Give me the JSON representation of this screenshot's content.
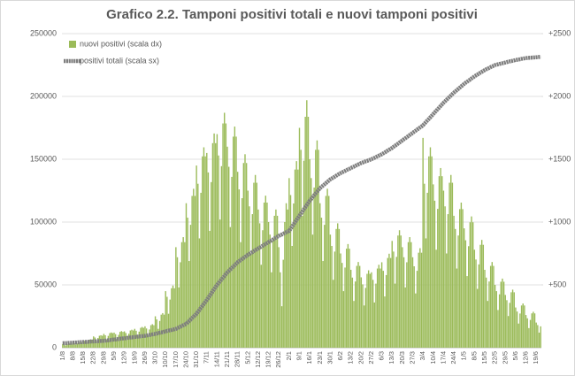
{
  "chart_data": {
    "type": "bar",
    "title": "Grafico 2.2. Tamponi positivi totali e nuovi tamponi positivi",
    "categories": [
      "1/8",
      null,
      null,
      null,
      null,
      null,
      null,
      "8/8",
      null,
      null,
      null,
      null,
      null,
      null,
      "15/8",
      null,
      null,
      null,
      null,
      null,
      null,
      "22/8",
      null,
      null,
      null,
      null,
      null,
      null,
      "29/8",
      null,
      null,
      null,
      null,
      null,
      null,
      "5/9",
      null,
      null,
      null,
      null,
      null,
      null,
      "12/9",
      null,
      null,
      null,
      null,
      null,
      null,
      "19/9",
      null,
      null,
      null,
      null,
      null,
      null,
      "26/9",
      null,
      null,
      null,
      null,
      null,
      null,
      "3/10",
      null,
      null,
      null,
      null,
      null,
      null,
      "10/10",
      null,
      null,
      null,
      null,
      null,
      null,
      "17/10",
      null,
      null,
      null,
      null,
      null,
      null,
      "24/10",
      null,
      null,
      null,
      null,
      null,
      null,
      "31/10",
      null,
      null,
      null,
      null,
      null,
      null,
      "7/11",
      null,
      null,
      null,
      null,
      null,
      null,
      "14/11",
      null,
      null,
      null,
      null,
      null,
      null,
      "21/11",
      null,
      null,
      null,
      null,
      null,
      null,
      "28/11",
      null,
      null,
      null,
      null,
      null,
      null,
      "5/12",
      null,
      null,
      null,
      null,
      null,
      null,
      "12/12",
      null,
      null,
      null,
      null,
      null,
      null,
      "19/12",
      null,
      null,
      null,
      null,
      null,
      null,
      "26/12",
      null,
      null,
      null,
      null,
      null,
      null,
      "2/1",
      null,
      null,
      null,
      null,
      null,
      null,
      "9/1",
      null,
      null,
      null,
      null,
      null,
      null,
      "16/1",
      null,
      null,
      null,
      null,
      null,
      null,
      "23/1",
      null,
      null,
      null,
      null,
      null,
      null,
      "30/1",
      null,
      null,
      null,
      null,
      null,
      null,
      "6/2",
      null,
      null,
      null,
      null,
      null,
      null,
      "13/2",
      null,
      null,
      null,
      null,
      null,
      null,
      "20/2",
      null,
      null,
      null,
      null,
      null,
      null,
      "27/2",
      null,
      null,
      null,
      null,
      null,
      null,
      "6/3",
      null,
      null,
      null,
      null,
      null,
      null,
      "13/3",
      null,
      null,
      null,
      null,
      null,
      null,
      "20/3",
      null,
      null,
      null,
      null,
      null,
      null,
      "27/3",
      null,
      null,
      null,
      null,
      null,
      null,
      "3/4",
      null,
      null,
      null,
      null,
      null,
      null,
      "10/4",
      null,
      null,
      null,
      null,
      null,
      null,
      "17/4",
      null,
      null,
      null,
      null,
      null,
      null,
      "24/4",
      null,
      null,
      null,
      null,
      null,
      null,
      "1/5",
      null,
      null,
      null,
      null,
      null,
      null,
      "8/5",
      null,
      null,
      null,
      null,
      null,
      null,
      "15/5",
      null,
      null,
      null,
      null,
      null,
      null,
      "22/5",
      null,
      null,
      null,
      null,
      null,
      null,
      "29/5",
      null,
      null,
      null,
      null,
      null,
      null,
      "5/6",
      null,
      null,
      null,
      null,
      null,
      null,
      "12/6",
      null,
      null,
      null,
      null,
      null,
      null,
      "19/6",
      null,
      null,
      null
    ],
    "series": [
      {
        "name": "nuovi positivi (scala dx)",
        "type": "bar",
        "axis": "y2",
        "color": "#9bbb59",
        "values": [
          30,
          27,
          18,
          26,
          32,
          33,
          32,
          40,
          36,
          24,
          34,
          42,
          44,
          42,
          60,
          54,
          36,
          51,
          63,
          66,
          63,
          90,
          81,
          54,
          77,
          95,
          99,
          95,
          110,
          99,
          66,
          94,
          116,
          121,
          116,
          120,
          108,
          72,
          102,
          126,
          132,
          126,
          130,
          117,
          78,
          111,
          137,
          143,
          137,
          150,
          135,
          90,
          128,
          158,
          165,
          158,
          170,
          153,
          102,
          145,
          179,
          187,
          179,
          250,
          225,
          150,
          213,
          263,
          275,
          263,
          450,
          405,
          270,
          383,
          473,
          495,
          473,
          800,
          720,
          480,
          680,
          840,
          880,
          840,
          1150,
          1035,
          690,
          978,
          1208,
          1265,
          1208,
          1450,
          1305,
          870,
          1233,
          1523,
          1595,
          1523,
          1550,
          1395,
          930,
          1318,
          1628,
          1705,
          1628,
          1700,
          1530,
          1020,
          1445,
          1785,
          1870,
          1785,
          1600,
          1440,
          960,
          1360,
          1680,
          1760,
          1680,
          1400,
          1260,
          840,
          1190,
          1470,
          1540,
          1470,
          1250,
          1125,
          750,
          1063,
          1313,
          1375,
          1313,
          1100,
          990,
          660,
          935,
          1155,
          1210,
          1155,
          1000,
          900,
          600,
          850,
          1050,
          1100,
          1050,
          800,
          600,
          330,
          700,
          1000,
          1150,
          1100,
          1350,
          1215,
          810,
          1148,
          1418,
          1485,
          1418,
          1750,
          1575,
          1050,
          1488,
          1838,
          1970,
          1838,
          1500,
          1350,
          900,
          1275,
          1575,
          1650,
          1575,
          1150,
          1035,
          690,
          978,
          1208,
          1265,
          1208,
          900,
          810,
          540,
          765,
          945,
          990,
          945,
          750,
          675,
          450,
          638,
          788,
          825,
          788,
          620,
          558,
          372,
          527,
          651,
          682,
          651,
          560,
          504,
          336,
          476,
          588,
          616,
          588,
          600,
          540,
          360,
          510,
          630,
          660,
          630,
          680,
          612,
          408,
          578,
          714,
          748,
          714,
          850,
          765,
          510,
          723,
          893,
          935,
          893,
          800,
          720,
          480,
          680,
          840,
          880,
          840,
          720,
          648,
          432,
          612,
          756,
          792,
          756,
          1670,
          1305,
          870,
          1233,
          1523,
          1595,
          1523,
          1300,
          1170,
          780,
          1105,
          1365,
          1430,
          1365,
          1250,
          1125,
          750,
          1063,
          1313,
          1375,
          1313,
          1050,
          945,
          630,
          893,
          1103,
          1155,
          1103,
          950,
          855,
          570,
          808,
          998,
          1045,
          998,
          780,
          702,
          468,
          663,
          819,
          858,
          819,
          620,
          558,
          372,
          527,
          651,
          682,
          651,
          500,
          450,
          300,
          425,
          525,
          550,
          525,
          420,
          378,
          252,
          357,
          441,
          462,
          441,
          320,
          288,
          192,
          272,
          336,
          352,
          336,
          260,
          234,
          156,
          221,
          273,
          286,
          273,
          200,
          180,
          120,
          170
        ]
      },
      {
        "name": "positivi totali (scala sx)",
        "type": "line",
        "color": "#7f7f7f",
        "values": [
          3500,
          3600,
          3600,
          3700,
          3800,
          3900,
          3900,
          4000,
          4100,
          4100,
          4200,
          4300,
          4400,
          4400,
          4500,
          4600,
          4600,
          4700,
          4800,
          4900,
          4900,
          5000,
          5100,
          5100,
          5200,
          5300,
          5400,
          5400,
          5500,
          5600,
          5800,
          5900,
          6100,
          6200,
          6400,
          6500,
          6600,
          6800,
          6900,
          7100,
          7200,
          7400,
          7500,
          7600,
          7800,
          7900,
          8100,
          8200,
          8400,
          8500,
          8600,
          8800,
          8900,
          9100,
          9200,
          9400,
          9500,
          9700,
          9900,
          10100,
          10400,
          10600,
          10800,
          11000,
          11300,
          11600,
          11900,
          12100,
          12400,
          12700,
          13000,
          13300,
          13600,
          13900,
          14100,
          14400,
          14700,
          15000,
          15600,
          16100,
          16700,
          17300,
          17900,
          18400,
          19000,
          20100,
          21300,
          22400,
          23600,
          24700,
          25900,
          27000,
          28600,
          30100,
          31700,
          33300,
          34900,
          36400,
          38000,
          39700,
          41400,
          43100,
          44900,
          46600,
          48300,
          50000,
          51400,
          52900,
          54300,
          55700,
          57100,
          58600,
          60000,
          61100,
          62300,
          63400,
          64600,
          65700,
          66900,
          68000,
          68900,
          69700,
          70600,
          71400,
          72300,
          73100,
          74000,
          74700,
          75400,
          76100,
          76900,
          77600,
          78300,
          79000,
          79700,
          80400,
          81100,
          81900,
          82600,
          83300,
          84000,
          84700,
          85400,
          86100,
          86900,
          87600,
          88300,
          89000,
          89600,
          90100,
          90700,
          91300,
          91900,
          92400,
          93000,
          94700,
          96400,
          98100,
          99900,
          101600,
          103300,
          105000,
          106700,
          108400,
          110100,
          111900,
          113600,
          115300,
          117000,
          118400,
          119900,
          121300,
          122700,
          124100,
          125600,
          127000,
          128000,
          129000,
          130000,
          131000,
          132000,
          133000,
          134000,
          134700,
          135400,
          136100,
          136900,
          137600,
          138300,
          139000,
          139600,
          140100,
          140700,
          141300,
          141900,
          142400,
          143000,
          143600,
          144100,
          144700,
          145300,
          145900,
          146400,
          147000,
          147400,
          147900,
          148300,
          148700,
          149100,
          149600,
          150000,
          150600,
          151100,
          151700,
          152300,
          152900,
          153400,
          154000,
          154700,
          155400,
          156100,
          156900,
          157600,
          158300,
          159000,
          159900,
          160700,
          161600,
          162400,
          163300,
          164100,
          165000,
          165900,
          166700,
          167600,
          168400,
          169300,
          170100,
          171000,
          171900,
          172700,
          173600,
          174400,
          175300,
          176100,
          177000,
          178300,
          179600,
          180900,
          182100,
          183400,
          184700,
          186000,
          187300,
          188600,
          189900,
          191100,
          192400,
          193700,
          195000,
          196100,
          197300,
          198400,
          199600,
          200700,
          201900,
          203000,
          204000,
          205000,
          206000,
          207000,
          208000,
          209000,
          210000,
          210900,
          211700,
          212600,
          213400,
          214300,
          215100,
          216000,
          216700,
          217400,
          218100,
          218900,
          219600,
          220300,
          221000,
          221600,
          222100,
          222700,
          223300,
          223900,
          224400,
          225000,
          225300,
          225600,
          225900,
          226100,
          226400,
          226700,
          227000,
          227300,
          227600,
          227900,
          228100,
          228400,
          228700,
          229000,
          229200,
          229400,
          229600,
          229900,
          230100,
          230300,
          230500,
          230600,
          230700,
          230800,
          230900,
          231000,
          231100,
          231200,
          231300,
          231400,
          231500
        ]
      }
    ],
    "ylim": [
      0,
      250000
    ],
    "yticks": [
      0,
      50000,
      100000,
      150000,
      200000,
      250000
    ],
    "y2lim": [
      0,
      2500
    ],
    "y2ticks": [
      {
        "value": 500,
        "label": "+500"
      },
      {
        "value": 1000,
        "label": "+1000"
      },
      {
        "value": 1500,
        "label": "+1500"
      },
      {
        "value": 2000,
        "label": "+2000"
      },
      {
        "value": 2500,
        "label": "+2500"
      }
    ],
    "grid": true,
    "legend": "top-left"
  }
}
